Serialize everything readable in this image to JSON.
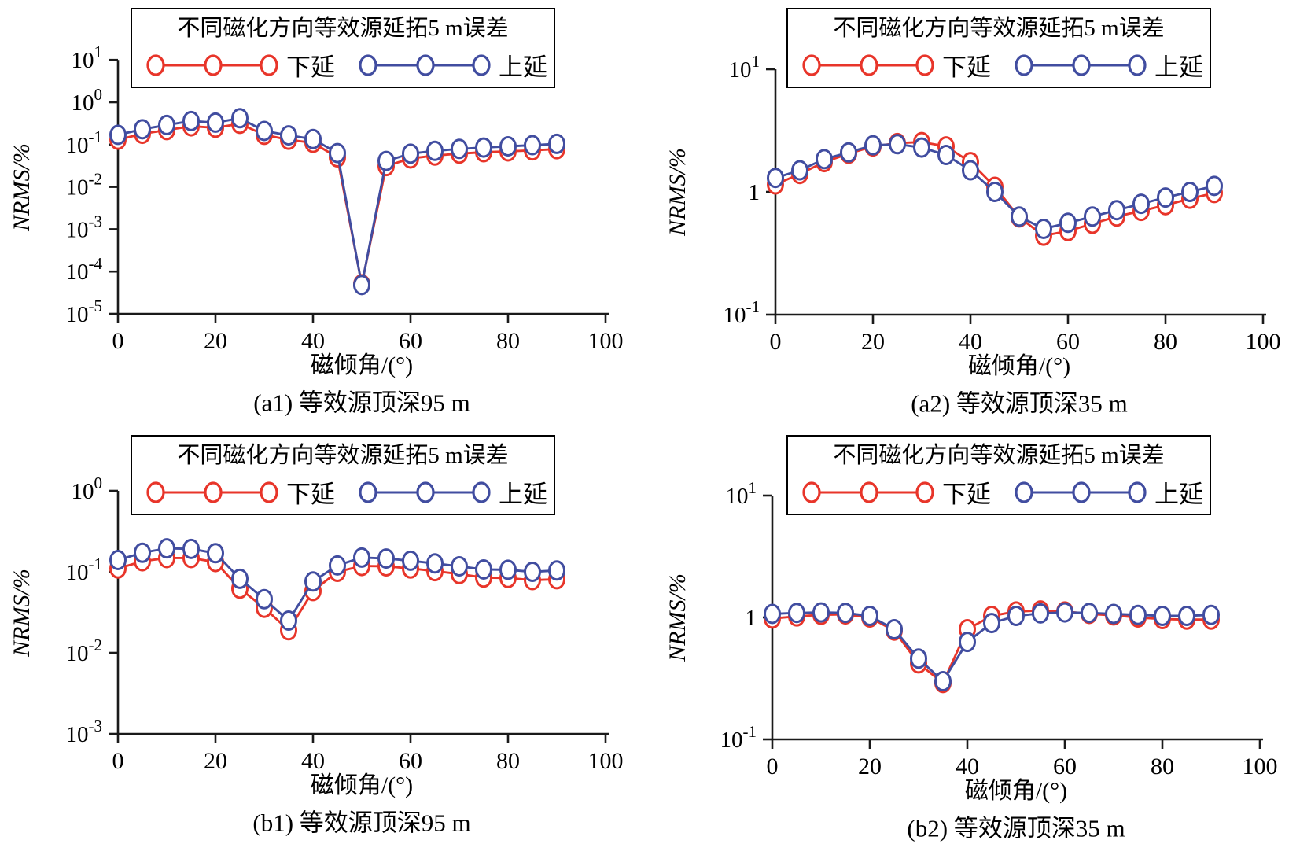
{
  "figure": {
    "background": "#ffffff",
    "colors": {
      "down": "#e8352a",
      "up": "#414da0",
      "axis": "#1a1a1a"
    },
    "xlabel": "磁倾角/(°)",
    "ylabel": "NRMS/%",
    "legend": {
      "title": "不同磁化方向等效源延拓5 m误差",
      "entries": [
        {
          "key": "down",
          "label": "下延"
        },
        {
          "key": "up",
          "label": "上延"
        }
      ]
    }
  },
  "chart_data": [
    {
      "id": "a1",
      "type": "line",
      "caption": "(a1) 等效源顶深95 m",
      "xlabel": "磁倾角/(°)",
      "ylabel": "NRMS/%",
      "yscale": "log",
      "xlim": [
        0,
        100
      ],
      "ylim": [
        1e-05,
        10
      ],
      "xticks": [
        0,
        20,
        40,
        60,
        80,
        100
      ],
      "yticks": [
        {
          "base": "10",
          "sup": "1",
          "exp": 1
        },
        {
          "base": "10",
          "sup": "0",
          "exp": 0
        },
        {
          "base": "10",
          "sup": "-1",
          "exp": -1
        },
        {
          "base": "10",
          "sup": "-2",
          "exp": -2
        },
        {
          "base": "10",
          "sup": "-3",
          "exp": -3
        },
        {
          "base": "10",
          "sup": "-4",
          "exp": -4
        },
        {
          "base": "10",
          "sup": "-5",
          "exp": -5
        }
      ],
      "x": [
        0,
        5,
        10,
        15,
        20,
        25,
        30,
        35,
        40,
        45,
        50,
        55,
        60,
        65,
        70,
        75,
        80,
        85,
        90
      ],
      "series": [
        {
          "name": "下延",
          "color_key": "down",
          "values": [
            0.13,
            0.18,
            0.22,
            0.27,
            0.25,
            0.31,
            0.17,
            0.13,
            0.11,
            0.05,
            5e-05,
            0.031,
            0.047,
            0.055,
            0.061,
            0.066,
            0.069,
            0.073,
            0.078
          ]
        },
        {
          "name": "上延",
          "color_key": "up",
          "values": [
            0.17,
            0.23,
            0.29,
            0.36,
            0.33,
            0.42,
            0.21,
            0.165,
            0.135,
            0.063,
            4.8e-05,
            0.041,
            0.061,
            0.071,
            0.079,
            0.085,
            0.091,
            0.097,
            0.104
          ]
        }
      ]
    },
    {
      "id": "a2",
      "type": "line",
      "caption": "(a2) 等效源顶深35 m",
      "xlabel": "磁倾角/(°)",
      "ylabel": "NRMS/%",
      "yscale": "log",
      "xlim": [
        0,
        100
      ],
      "ylim": [
        0.1,
        10
      ],
      "xticks": [
        0,
        20,
        40,
        60,
        80,
        100
      ],
      "yticks": [
        {
          "base": "10",
          "sup": "1",
          "exp": 1
        },
        {
          "base": "1",
          "sup": "",
          "exp": 0
        },
        {
          "base": "10",
          "sup": "-1",
          "exp": -1
        }
      ],
      "x": [
        0,
        5,
        10,
        15,
        20,
        25,
        30,
        35,
        40,
        45,
        50,
        55,
        60,
        65,
        70,
        75,
        80,
        85,
        90
      ],
      "series": [
        {
          "name": "下延",
          "color_key": "down",
          "values": [
            1.15,
            1.4,
            1.75,
            2.05,
            2.35,
            2.5,
            2.55,
            2.35,
            1.75,
            1.1,
            0.62,
            0.44,
            0.48,
            0.55,
            0.63,
            0.7,
            0.78,
            0.88,
            0.98
          ]
        },
        {
          "name": "上延",
          "color_key": "up",
          "values": [
            1.3,
            1.5,
            1.85,
            2.1,
            2.4,
            2.45,
            2.3,
            2.0,
            1.5,
            1.0,
            0.63,
            0.5,
            0.56,
            0.63,
            0.71,
            0.8,
            0.9,
            1.0,
            1.12
          ]
        }
      ]
    },
    {
      "id": "b1",
      "type": "line",
      "caption": "(b1) 等效源顶深95 m",
      "xlabel": "磁倾角/(°)",
      "ylabel": "NRMS/%",
      "yscale": "log",
      "xlim": [
        0,
        100
      ],
      "ylim": [
        0.001,
        1
      ],
      "xticks": [
        0,
        20,
        40,
        60,
        80,
        100
      ],
      "yticks": [
        {
          "base": "10",
          "sup": "0",
          "exp": 0
        },
        {
          "base": "10",
          "sup": "-1",
          "exp": -1
        },
        {
          "base": "10",
          "sup": "-2",
          "exp": -2
        },
        {
          "base": "10",
          "sup": "-3",
          "exp": -3
        }
      ],
      "x": [
        0,
        5,
        10,
        15,
        20,
        25,
        30,
        35,
        40,
        45,
        50,
        55,
        60,
        65,
        70,
        75,
        80,
        85,
        90
      ],
      "series": [
        {
          "name": "下延",
          "color_key": "down",
          "values": [
            0.11,
            0.135,
            0.148,
            0.148,
            0.132,
            0.062,
            0.036,
            0.019,
            0.058,
            0.1,
            0.118,
            0.117,
            0.11,
            0.102,
            0.094,
            0.085,
            0.084,
            0.079,
            0.081
          ]
        },
        {
          "name": "上延",
          "color_key": "up",
          "values": [
            0.14,
            0.172,
            0.195,
            0.192,
            0.17,
            0.082,
            0.046,
            0.025,
            0.076,
            0.12,
            0.15,
            0.146,
            0.137,
            0.127,
            0.117,
            0.107,
            0.106,
            0.1,
            0.104
          ]
        }
      ]
    },
    {
      "id": "b2",
      "type": "line",
      "caption": "(b2) 等效源顶深35 m",
      "xlabel": "磁倾角/(°)",
      "ylabel": "NRMS/%",
      "yscale": "log",
      "xlim": [
        0,
        100
      ],
      "ylim": [
        0.1,
        10
      ],
      "xticks": [
        0,
        20,
        40,
        60,
        80,
        100
      ],
      "yticks": [
        {
          "base": "10",
          "sup": "1",
          "exp": 1
        },
        {
          "base": "1",
          "sup": "",
          "exp": 0
        },
        {
          "base": "10",
          "sup": "-1",
          "exp": -1
        }
      ],
      "x": [
        0,
        5,
        10,
        15,
        20,
        25,
        30,
        35,
        40,
        45,
        50,
        55,
        60,
        65,
        70,
        75,
        80,
        85,
        90
      ],
      "series": [
        {
          "name": "下延",
          "color_key": "down",
          "values": [
            0.98,
            1.02,
            1.05,
            1.06,
            1.0,
            0.78,
            0.42,
            0.29,
            0.8,
            1.03,
            1.12,
            1.14,
            1.12,
            1.07,
            1.04,
            1.0,
            0.97,
            0.96,
            0.96
          ]
        },
        {
          "name": "上延",
          "color_key": "up",
          "values": [
            1.07,
            1.09,
            1.1,
            1.09,
            1.03,
            0.8,
            0.46,
            0.3,
            0.63,
            0.9,
            1.03,
            1.08,
            1.1,
            1.09,
            1.07,
            1.05,
            1.03,
            1.03,
            1.05
          ]
        }
      ]
    }
  ]
}
